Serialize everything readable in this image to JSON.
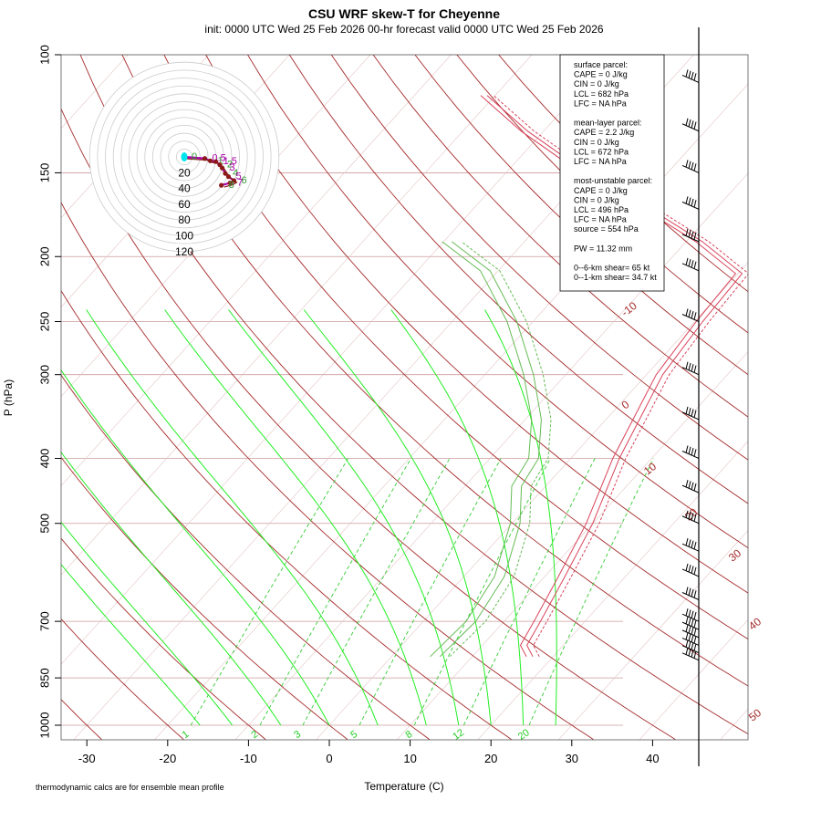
{
  "title": "CSU WRF skew-T for Cheyenne",
  "subtitle": "init: 0000 UTC Wed 25 Feb 2026     00-hr forecast valid 0000 UTC Wed 25 Feb 2026",
  "footnote": "thermodynamic calcs are for ensemble mean profile",
  "stats_box": [
    "surface parcel:",
    "CAPE = 0 J/kg",
    "CIN = 0 J/kg",
    "LCL = 682 hPa",
    "LFC = NA hPa",
    "",
    "mean-layer parcel:",
    "CAPE = 2.2 J/kg",
    "CIN = 0 J/kg",
    "LCL = 672 hPa",
    "LFC = NA hPa",
    "",
    "most-unstable parcel:",
    "CAPE = 0 J/kg",
    "CIN = 0 J/kg",
    "LCL = 496 hPa",
    "LFC = NA hPa",
    "source = 554 hPa",
    "",
    "PW =  11.32 mm",
    "",
    "0--6-km shear= 65 kt",
    "0--1-km shear= 34.7 kt"
  ],
  "colors": {
    "isotherm": "#a52a2a",
    "isobar": "#cd9b9b",
    "dry_adiabat": "#e8b0b0",
    "moist_adiabat": "#22ee22",
    "mixing_ratio": "#33cc33",
    "temperature": "#d9435a",
    "dewpoint": "#66bb55",
    "hodo_ring": "#cccccc",
    "hodo_trace": "#aa00aa",
    "hodo_point": "#8b1a1a",
    "hodo_origin": "#00e5ee"
  },
  "chart_data": {
    "type": "line",
    "xlabel": "Temperature (C)",
    "ylabel": "P (hPa)",
    "xlim": [
      -33,
      52
    ],
    "ylim": [
      1050,
      100
    ],
    "y_scale": "log",
    "x_ticks": [
      -30,
      -20,
      -10,
      0,
      10,
      20,
      30,
      40
    ],
    "x_tick_labels": [
      "-30",
      "-20",
      "-10",
      "0",
      "10",
      "20",
      "30",
      "40"
    ],
    "y_ticks": [
      100,
      150,
      200,
      250,
      300,
      400,
      500,
      700,
      850,
      1000
    ],
    "y_tick_labels": [
      "100",
      "150",
      "200",
      "250",
      "300",
      "400",
      "500",
      "700",
      "850",
      "1000"
    ],
    "isotherm_labels": [
      {
        "temp": -10,
        "text": "-10"
      },
      {
        "temp": 0,
        "text": "0"
      },
      {
        "temp": 10,
        "text": "10"
      },
      {
        "temp": 20,
        "text": "20"
      },
      {
        "temp": 30,
        "text": "30"
      },
      {
        "temp": 40,
        "text": "40"
      },
      {
        "temp": 50,
        "text": "50"
      }
    ],
    "mixing_ratio_labels": [
      "1",
      "2",
      "3",
      "5",
      "8",
      "12",
      "20"
    ],
    "temperature_profile": [
      {
        "p": 790,
        "t": 17.5
      },
      {
        "p": 760,
        "t": 15.5
      },
      {
        "p": 700,
        "t": 14.5
      },
      {
        "p": 600,
        "t": 12.5
      },
      {
        "p": 500,
        "t": 10.0
      },
      {
        "p": 400,
        "t": 6.0
      },
      {
        "p": 300,
        "t": 2.0
      },
      {
        "p": 250,
        "t": 1.0
      },
      {
        "p": 212,
        "t": 0.5
      },
      {
        "p": 190,
        "t": -8.0
      },
      {
        "p": 170,
        "t": -18.0
      },
      {
        "p": 150,
        "t": -30.0
      },
      {
        "p": 130,
        "t": -42.0
      },
      {
        "p": 115,
        "t": -51.0
      }
    ],
    "dewpoint_profile": [
      {
        "p": 790,
        "t": 6.0
      },
      {
        "p": 700,
        "t": 6.5
      },
      {
        "p": 600,
        "t": 5.0
      },
      {
        "p": 500,
        "t": 1.0
      },
      {
        "p": 440,
        "t": -3.0
      },
      {
        "p": 400,
        "t": -4.0
      },
      {
        "p": 350,
        "t": -8.0
      },
      {
        "p": 300,
        "t": -14.0
      },
      {
        "p": 250,
        "t": -22.0
      },
      {
        "p": 210,
        "t": -31.0
      },
      {
        "p": 190,
        "t": -39.0
      }
    ],
    "hodograph_rings": [
      "20",
      "40",
      "60",
      "80",
      "100",
      "120"
    ],
    "hodograph_points": [
      {
        "label": "0",
        "u": 0,
        "v": 0
      },
      {
        "label": "0.5",
        "u": 26,
        "v": -2
      },
      {
        "label": "1",
        "u": 33,
        "v": -5
      },
      {
        "label": "1.5",
        "u": 40,
        "v": -6
      },
      {
        "label": "2",
        "u": 45,
        "v": -10
      },
      {
        "label": "3",
        "u": 48,
        "v": -14
      },
      {
        "label": "4",
        "u": 52,
        "v": -21
      },
      {
        "label": "5",
        "u": 56,
        "v": -25
      },
      {
        "label": "6",
        "u": 63,
        "v": -30
      },
      {
        "label": "7",
        "u": 58,
        "v": -33
      },
      {
        "label": "8",
        "u": 47,
        "v": -36
      }
    ],
    "wind_barb_pressures": [
      110,
      130,
      150,
      170,
      190,
      210,
      250,
      300,
      350,
      400,
      450,
      500,
      550,
      600,
      650,
      700,
      720,
      740,
      760,
      780,
      800
    ]
  }
}
